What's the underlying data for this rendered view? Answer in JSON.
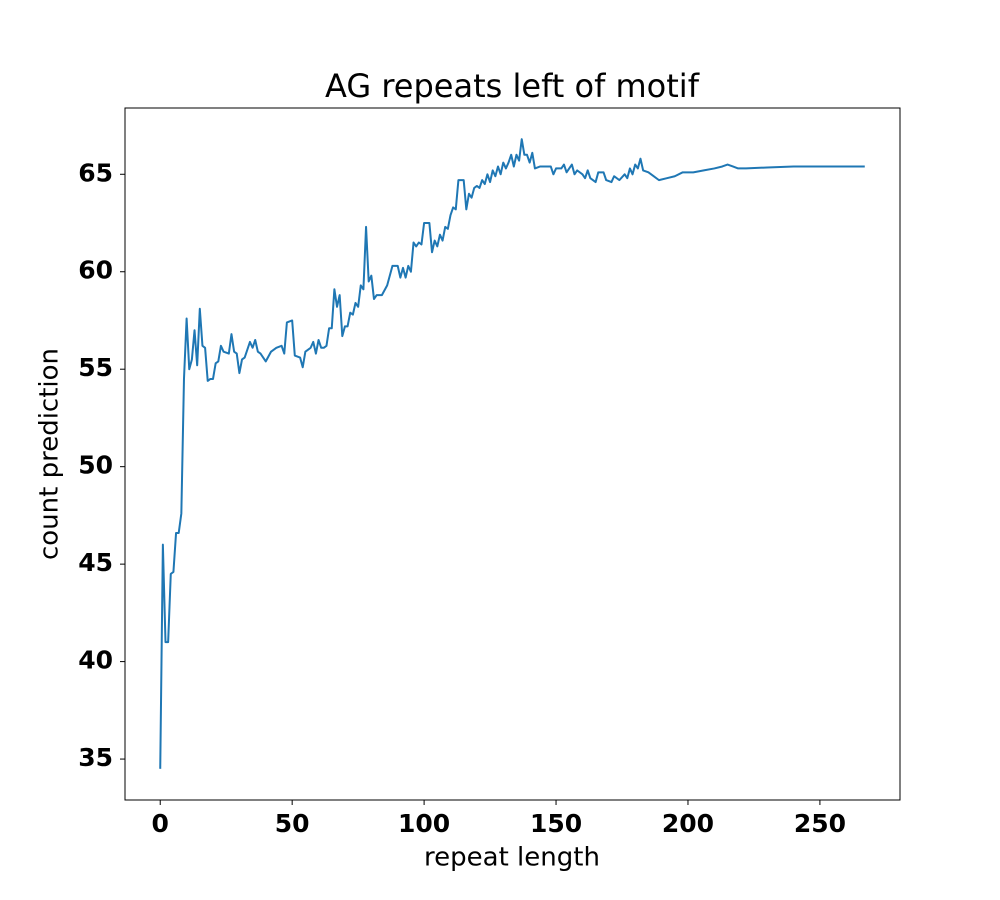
{
  "chart_data": {
    "type": "line",
    "title": "AG repeats left of motif",
    "x_label": "repeat length",
    "y_label": "count prediction",
    "color": "#1f77b4",
    "x": [
      0,
      1,
      2,
      3,
      4,
      5,
      6,
      7,
      8,
      9,
      10,
      11,
      12,
      13,
      14,
      15,
      16,
      17,
      18,
      19,
      20,
      21,
      22,
      23,
      24,
      26,
      27,
      28,
      29,
      30,
      31,
      32,
      34,
      35,
      36,
      37,
      38,
      40,
      42,
      44,
      46,
      47,
      48,
      50,
      51,
      53,
      54,
      55,
      57,
      58,
      59,
      60,
      61,
      62,
      63,
      64,
      65,
      66,
      67,
      68,
      69,
      70,
      71,
      72,
      73,
      74,
      75,
      76,
      77,
      78,
      79,
      80,
      81,
      82,
      84,
      86,
      88,
      90,
      91,
      92,
      93,
      94,
      95,
      96,
      97,
      98,
      99,
      100,
      102,
      103,
      104,
      105,
      106,
      107,
      108,
      109,
      110,
      111,
      112,
      113,
      115,
      116,
      117,
      118,
      119,
      120,
      121,
      122,
      123,
      124,
      125,
      126,
      127,
      128,
      129,
      130,
      131,
      132,
      133,
      134,
      135,
      136,
      137,
      138,
      139,
      140,
      141,
      142,
      144,
      148,
      149,
      150,
      152,
      153,
      154,
      156,
      157,
      158,
      160,
      161,
      162,
      163,
      165,
      166,
      168,
      169,
      171,
      172,
      174,
      176,
      177,
      178,
      179,
      180,
      181,
      182,
      183,
      185,
      187,
      189,
      192,
      195,
      198,
      202,
      206,
      210,
      213,
      215,
      217,
      219,
      222,
      230,
      240,
      250,
      267
    ],
    "values": [
      34.5,
      46.0,
      41.0,
      41.0,
      44.5,
      44.6,
      46.6,
      46.6,
      47.6,
      54.5,
      57.6,
      55.0,
      55.5,
      57.0,
      55.2,
      58.1,
      56.2,
      56.1,
      54.4,
      54.5,
      54.5,
      55.3,
      55.4,
      56.2,
      55.9,
      55.8,
      56.8,
      55.9,
      55.8,
      54.8,
      55.5,
      55.6,
      56.4,
      56.1,
      56.5,
      55.9,
      55.8,
      55.4,
      55.9,
      56.1,
      56.2,
      55.8,
      57.4,
      57.5,
      55.7,
      55.6,
      55.1,
      55.9,
      56.1,
      56.4,
      55.8,
      56.5,
      56.1,
      56.1,
      56.2,
      57.1,
      57.1,
      59.1,
      58.2,
      58.8,
      56.7,
      57.2,
      57.2,
      57.9,
      57.8,
      58.4,
      58.2,
      59.3,
      59.1,
      62.3,
      59.5,
      59.8,
      58.6,
      58.8,
      58.8,
      59.3,
      60.3,
      60.3,
      59.7,
      60.2,
      59.7,
      60.3,
      60.0,
      61.5,
      61.3,
      61.5,
      61.4,
      62.5,
      62.5,
      61.0,
      61.6,
      61.3,
      61.9,
      61.6,
      62.3,
      62.2,
      62.9,
      63.3,
      63.2,
      64.7,
      64.7,
      63.2,
      64.0,
      63.8,
      64.3,
      64.4,
      64.3,
      64.7,
      64.5,
      65.0,
      64.6,
      65.2,
      64.9,
      65.4,
      65.0,
      65.6,
      65.3,
      65.6,
      66.0,
      65.4,
      66.0,
      65.7,
      66.8,
      66.0,
      66.0,
      65.6,
      66.1,
      65.3,
      65.4,
      65.4,
      65.0,
      65.3,
      65.3,
      65.5,
      65.1,
      65.5,
      65.0,
      65.2,
      65.0,
      64.8,
      65.2,
      64.8,
      64.6,
      65.1,
      65.1,
      64.7,
      64.6,
      64.9,
      64.7,
      65.0,
      64.8,
      65.3,
      65.0,
      65.5,
      65.3,
      65.8,
      65.2,
      65.1,
      64.9,
      64.7,
      64.8,
      64.9,
      65.1,
      65.1,
      65.2,
      65.3,
      65.4,
      65.5,
      65.4,
      65.3,
      65.3,
      65.35,
      65.4,
      65.4,
      65.4
    ],
    "xlim": [
      -13.35,
      280.35
    ],
    "xticks": [
      0,
      50,
      100,
      150,
      200,
      250
    ],
    "ylim": [
      32.9,
      68.4
    ],
    "yticks": [
      35,
      40,
      45,
      50,
      55,
      60,
      65
    ]
  }
}
